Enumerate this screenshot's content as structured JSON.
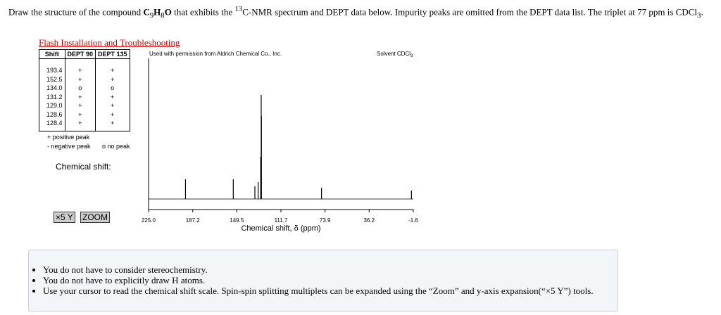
{
  "question": [
    "Draw the structure of the compound ",
    "C",
    "9",
    "H",
    "8",
    "O",
    " that exhibits the ",
    "13",
    "C-NMR spectrum and DEPT data below. Impurity peaks are omitted from the DEPT data list. The triplet at 77 ppm is CDCl",
    "3",
    "."
  ],
  "link": "Flash Installation and Troubleshooting",
  "table": {
    "headers": [
      "Shift",
      "DEPT 90",
      "DEPT 135"
    ],
    "rows": [
      [
        "193.4",
        "+",
        "+"
      ],
      [
        "152.5",
        "+",
        "+"
      ],
      [
        "134.0",
        "o",
        "o"
      ],
      [
        "131.2",
        "+",
        "+"
      ],
      [
        "129.0",
        "+",
        "+"
      ],
      [
        "128.6",
        "+",
        "+"
      ],
      [
        "128.4",
        "+",
        "+"
      ]
    ]
  },
  "legend": [
    "+ positive peak",
    "- negative peak",
    "o no peak"
  ],
  "chemical_shift_label": "Chemical shift:",
  "buttons": [
    "×5 Y",
    "ZOOM"
  ],
  "spectrum": {
    "credit": "Used with permission from Aldrich Chemical Co., Inc.",
    "solvent": [
      "Solvent CDCl",
      "3"
    ],
    "xlabel": "Chemical shift, δ (ppm)",
    "xlim": [
      225,
      -1.6
    ],
    "ylim": [
      0,
      100
    ],
    "xticks": [
      {
        "value": 225,
        "label": "225.0"
      },
      {
        "value": 187.2,
        "label": "187.2"
      },
      {
        "value": 149.5,
        "label": "149.5"
      },
      {
        "value": 111.7,
        "label": "111.7"
      },
      {
        "value": 73.9,
        "label": "73.9"
      },
      {
        "value": 36.2,
        "label": "36.2"
      },
      {
        "value": -1.6,
        "label": "-1.6"
      }
    ],
    "peaks": [
      {
        "shift": 193.4,
        "height": 14
      },
      {
        "shift": 152.5,
        "height": 14
      },
      {
        "shift": 134.0,
        "height": 9
      },
      {
        "shift": 131.2,
        "height": 12
      },
      {
        "shift": 129.0,
        "height": 30
      },
      {
        "shift": 128.6,
        "height": 74
      },
      {
        "shift": 128.4,
        "height": 59
      },
      {
        "shift": 77,
        "height": 8
      },
      {
        "shift": 0,
        "height": 6
      }
    ],
    "color": "#000000"
  },
  "notes": [
    "You do not have to consider stereochemistry.",
    "You do not have to explicitly draw H atoms.",
    "Use your cursor to read the chemical shift scale. Spin-spin splitting multiplets can be expanded using the “Zoom” and y-axis expansion(“×5 Y”) tools."
  ]
}
